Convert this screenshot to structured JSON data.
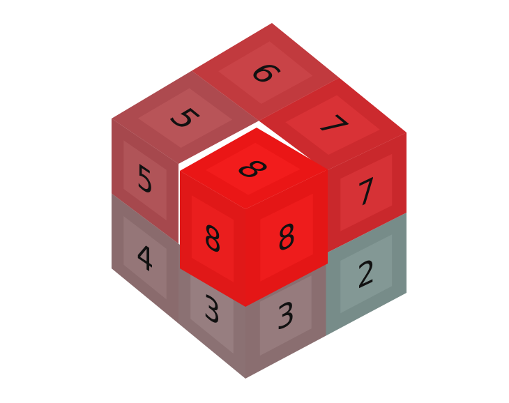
{
  "cube": {
    "top": [
      6,
      5,
      7
    ],
    "left": [
      5,
      4,
      3
    ],
    "right": [
      7,
      3,
      2
    ],
    "front_cube": {
      "top": 8,
      "left": 8,
      "right": 8
    }
  }
}
